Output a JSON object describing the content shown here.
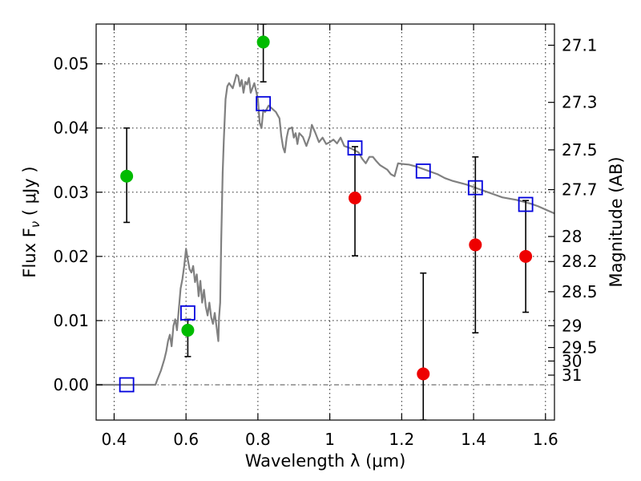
{
  "chart_data": {
    "type": "scatter",
    "xlabel": "Wavelength  λ (μm)",
    "ylabel": "Flux  F",
    "ylabel_sub": "ν",
    "ylabel_unit": "  ( μJy )",
    "y2label": "Magnitude (AB)",
    "xlim": [
      0.35,
      1.625
    ],
    "ylim": [
      -0.0055,
      0.0562
    ],
    "x_ticks": [
      0.4,
      0.6,
      0.8,
      1.0,
      1.2,
      1.4,
      1.6
    ],
    "x_tick_labels": [
      "0.4",
      "0.6",
      "0.8",
      "1",
      "1.2",
      "1.4",
      "1.6"
    ],
    "y_ticks": [
      0.0,
      0.01,
      0.02,
      0.03,
      0.04,
      0.05
    ],
    "y_tick_labels": [
      "0.00",
      "0.01",
      "0.02",
      "0.03",
      "0.04",
      "0.05"
    ],
    "mag_ticks": [
      {
        "label": "27.1",
        "flux": 0.0529
      },
      {
        "label": "27.3",
        "flux": 0.044
      },
      {
        "label": "27.5",
        "flux": 0.0366
      },
      {
        "label": "27.7",
        "flux": 0.0304
      },
      {
        "label": "28",
        "flux": 0.0231
      },
      {
        "label": "28.2",
        "flux": 0.0192
      },
      {
        "label": "28.5",
        "flux": 0.0145
      },
      {
        "label": "29",
        "flux": 0.0092
      },
      {
        "label": "29.5",
        "flux": 0.0058
      },
      {
        "label": "30",
        "flux": 0.0037
      },
      {
        "label": "31",
        "flux": 0.0015
      }
    ],
    "grid": true,
    "colors": {
      "model": "#808080",
      "detection": "#00bb00",
      "nondetection": "#ee0000",
      "model_flux": "#0000dd",
      "errorbar": "#000000"
    },
    "series": [
      {
        "type": "line",
        "points": [
          [
            0.35,
            0.0
          ],
          [
            0.515,
            0.0
          ],
          [
            0.52,
            0.0008
          ],
          [
            0.53,
            0.0022
          ],
          [
            0.54,
            0.004
          ],
          [
            0.545,
            0.0052
          ],
          [
            0.55,
            0.0068
          ],
          [
            0.555,
            0.0078
          ],
          [
            0.56,
            0.006
          ],
          [
            0.565,
            0.0092
          ],
          [
            0.57,
            0.0102
          ],
          [
            0.575,
            0.0085
          ],
          [
            0.58,
            0.0118
          ],
          [
            0.585,
            0.015
          ],
          [
            0.59,
            0.0165
          ],
          [
            0.595,
            0.0185
          ],
          [
            0.6,
            0.0212
          ],
          [
            0.605,
            0.0195
          ],
          [
            0.61,
            0.018
          ],
          [
            0.615,
            0.0175
          ],
          [
            0.62,
            0.0185
          ],
          [
            0.625,
            0.016
          ],
          [
            0.63,
            0.0172
          ],
          [
            0.635,
            0.0138
          ],
          [
            0.64,
            0.0162
          ],
          [
            0.645,
            0.0128
          ],
          [
            0.65,
            0.0148
          ],
          [
            0.655,
            0.0122
          ],
          [
            0.66,
            0.0108
          ],
          [
            0.665,
            0.0128
          ],
          [
            0.67,
            0.0105
          ],
          [
            0.675,
            0.0095
          ],
          [
            0.68,
            0.0112
          ],
          [
            0.685,
            0.009
          ],
          [
            0.69,
            0.0068
          ],
          [
            0.692,
            0.0105
          ],
          [
            0.695,
            0.0128
          ],
          [
            0.698,
            0.0225
          ],
          [
            0.702,
            0.033
          ],
          [
            0.705,
            0.038
          ],
          [
            0.71,
            0.0445
          ],
          [
            0.715,
            0.0465
          ],
          [
            0.72,
            0.047
          ],
          [
            0.725,
            0.0466
          ],
          [
            0.73,
            0.0462
          ],
          [
            0.735,
            0.0472
          ],
          [
            0.74,
            0.0483
          ],
          [
            0.745,
            0.0481
          ],
          [
            0.75,
            0.0465
          ],
          [
            0.755,
            0.0475
          ],
          [
            0.76,
            0.0455
          ],
          [
            0.765,
            0.0472
          ],
          [
            0.77,
            0.0468
          ],
          [
            0.775,
            0.0478
          ],
          [
            0.78,
            0.0455
          ],
          [
            0.79,
            0.047
          ],
          [
            0.795,
            0.0458
          ],
          [
            0.8,
            0.0445
          ],
          [
            0.805,
            0.0408
          ],
          [
            0.81,
            0.04
          ],
          [
            0.815,
            0.0428
          ],
          [
            0.82,
            0.0425
          ],
          [
            0.83,
            0.0435
          ],
          [
            0.84,
            0.043
          ],
          [
            0.85,
            0.0425
          ],
          [
            0.86,
            0.0415
          ],
          [
            0.865,
            0.0388
          ],
          [
            0.87,
            0.037
          ],
          [
            0.875,
            0.0362
          ],
          [
            0.88,
            0.0385
          ],
          [
            0.885,
            0.0398
          ],
          [
            0.895,
            0.0401
          ],
          [
            0.9,
            0.0385
          ],
          [
            0.905,
            0.0392
          ],
          [
            0.91,
            0.0375
          ],
          [
            0.915,
            0.0392
          ],
          [
            0.925,
            0.0386
          ],
          [
            0.935,
            0.0372
          ],
          [
            0.945,
            0.0388
          ],
          [
            0.95,
            0.0405
          ],
          [
            0.96,
            0.0392
          ],
          [
            0.97,
            0.0378
          ],
          [
            0.98,
            0.0385
          ],
          [
            0.99,
            0.0375
          ],
          [
            1.0,
            0.0378
          ],
          [
            1.01,
            0.0382
          ],
          [
            1.02,
            0.0376
          ],
          [
            1.03,
            0.0385
          ],
          [
            1.04,
            0.0372
          ],
          [
            1.06,
            0.0368
          ],
          [
            1.08,
            0.0362
          ],
          [
            1.09,
            0.0352
          ],
          [
            1.1,
            0.0345
          ],
          [
            1.11,
            0.0355
          ],
          [
            1.12,
            0.0355
          ],
          [
            1.13,
            0.0348
          ],
          [
            1.14,
            0.0342
          ],
          [
            1.16,
            0.0335
          ],
          [
            1.17,
            0.0328
          ],
          [
            1.18,
            0.0325
          ],
          [
            1.19,
            0.0345
          ],
          [
            1.2,
            0.0344
          ],
          [
            1.22,
            0.0343
          ],
          [
            1.24,
            0.034
          ],
          [
            1.26,
            0.0336
          ],
          [
            1.28,
            0.0332
          ],
          [
            1.3,
            0.0328
          ],
          [
            1.32,
            0.0322
          ],
          [
            1.34,
            0.0318
          ],
          [
            1.36,
            0.0315
          ],
          [
            1.38,
            0.0312
          ],
          [
            1.4,
            0.0308
          ],
          [
            1.42,
            0.0304
          ],
          [
            1.44,
            0.03
          ],
          [
            1.46,
            0.0296
          ],
          [
            1.48,
            0.0292
          ],
          [
            1.5,
            0.029
          ],
          [
            1.52,
            0.0288
          ],
          [
            1.54,
            0.0285
          ],
          [
            1.56,
            0.0282
          ],
          [
            1.58,
            0.0278
          ],
          [
            1.6,
            0.0273
          ],
          [
            1.625,
            0.0267
          ]
        ]
      },
      {
        "type": "scatter",
        "marker": "square-open",
        "points": [
          [
            0.435,
            0.0
          ],
          [
            0.605,
            0.0112
          ],
          [
            0.815,
            0.0438
          ],
          [
            1.07,
            0.0369
          ],
          [
            1.26,
            0.0333
          ],
          [
            1.405,
            0.0307
          ],
          [
            1.545,
            0.0281
          ]
        ]
      },
      {
        "type": "scatter",
        "marker": "circle-filled",
        "points": [
          {
            "x": 0.435,
            "y": 0.0325,
            "lo": 0.0253,
            "hi": 0.04
          },
          {
            "x": 0.605,
            "y": 0.0085,
            "lo": 0.0044,
            "hi": 0.0102
          },
          {
            "x": 0.815,
            "y": 0.0534,
            "lo": 0.0472,
            "hi": 0.0562
          }
        ]
      },
      {
        "type": "scatter",
        "marker": "circle-filled",
        "points": [
          {
            "x": 1.07,
            "y": 0.0291,
            "lo": 0.0201,
            "hi": 0.0371
          },
          {
            "x": 1.26,
            "y": 0.0017,
            "lo": -0.0055,
            "hi": 0.0174
          },
          {
            "x": 1.405,
            "y": 0.0218,
            "lo": 0.0081,
            "hi": 0.0355
          },
          {
            "x": 1.545,
            "y": 0.02,
            "lo": 0.0113,
            "hi": 0.0287
          }
        ]
      }
    ]
  }
}
